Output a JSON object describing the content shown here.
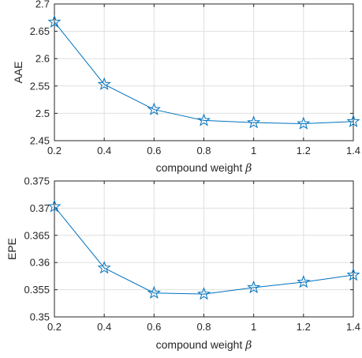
{
  "chart_data": [
    {
      "type": "line",
      "ylabel": "AAE",
      "xlabel_text": "compound weight ",
      "xlabel_symbol": "β",
      "x": [
        0.2,
        0.4,
        0.6,
        0.8,
        1.0,
        1.2,
        1.4
      ],
      "x_tick_labels": [
        "0.2",
        "0.4",
        "0.6",
        "0.8",
        "1",
        "1.2",
        "1.4"
      ],
      "xlim": [
        0.2,
        1.4
      ],
      "ylim": [
        2.45,
        2.7
      ],
      "y_ticks": [
        2.45,
        2.5,
        2.55,
        2.6,
        2.65,
        2.7
      ],
      "y_tick_labels": [
        "2.45",
        "2.5",
        "2.55",
        "2.6",
        "2.65",
        "2.7"
      ],
      "series": [
        {
          "values": [
            2.667,
            2.553,
            2.507,
            2.487,
            2.483,
            2.481,
            2.485
          ],
          "marker": "pentagram",
          "color": "#0072BD"
        }
      ],
      "grid": true
    },
    {
      "type": "line",
      "ylabel": "EPE",
      "xlabel_text": "compound weight ",
      "xlabel_symbol": "β",
      "x": [
        0.2,
        0.4,
        0.6,
        0.8,
        1.0,
        1.2,
        1.4
      ],
      "x_tick_labels": [
        "0.2",
        "0.4",
        "0.6",
        "0.8",
        "1",
        "1.2",
        "1.4"
      ],
      "xlim": [
        0.2,
        1.4
      ],
      "ylim": [
        0.35,
        0.375
      ],
      "y_ticks": [
        0.35,
        0.355,
        0.36,
        0.365,
        0.37,
        0.375
      ],
      "y_tick_labels": [
        "0.35",
        "0.355",
        "0.36",
        "0.365",
        "0.37",
        "0.375"
      ],
      "series": [
        {
          "values": [
            0.3703,
            0.359,
            0.3544,
            0.3542,
            0.3554,
            0.3564,
            0.3577
          ],
          "marker": "pentagram",
          "color": "#0072BD"
        }
      ],
      "grid": true
    }
  ]
}
